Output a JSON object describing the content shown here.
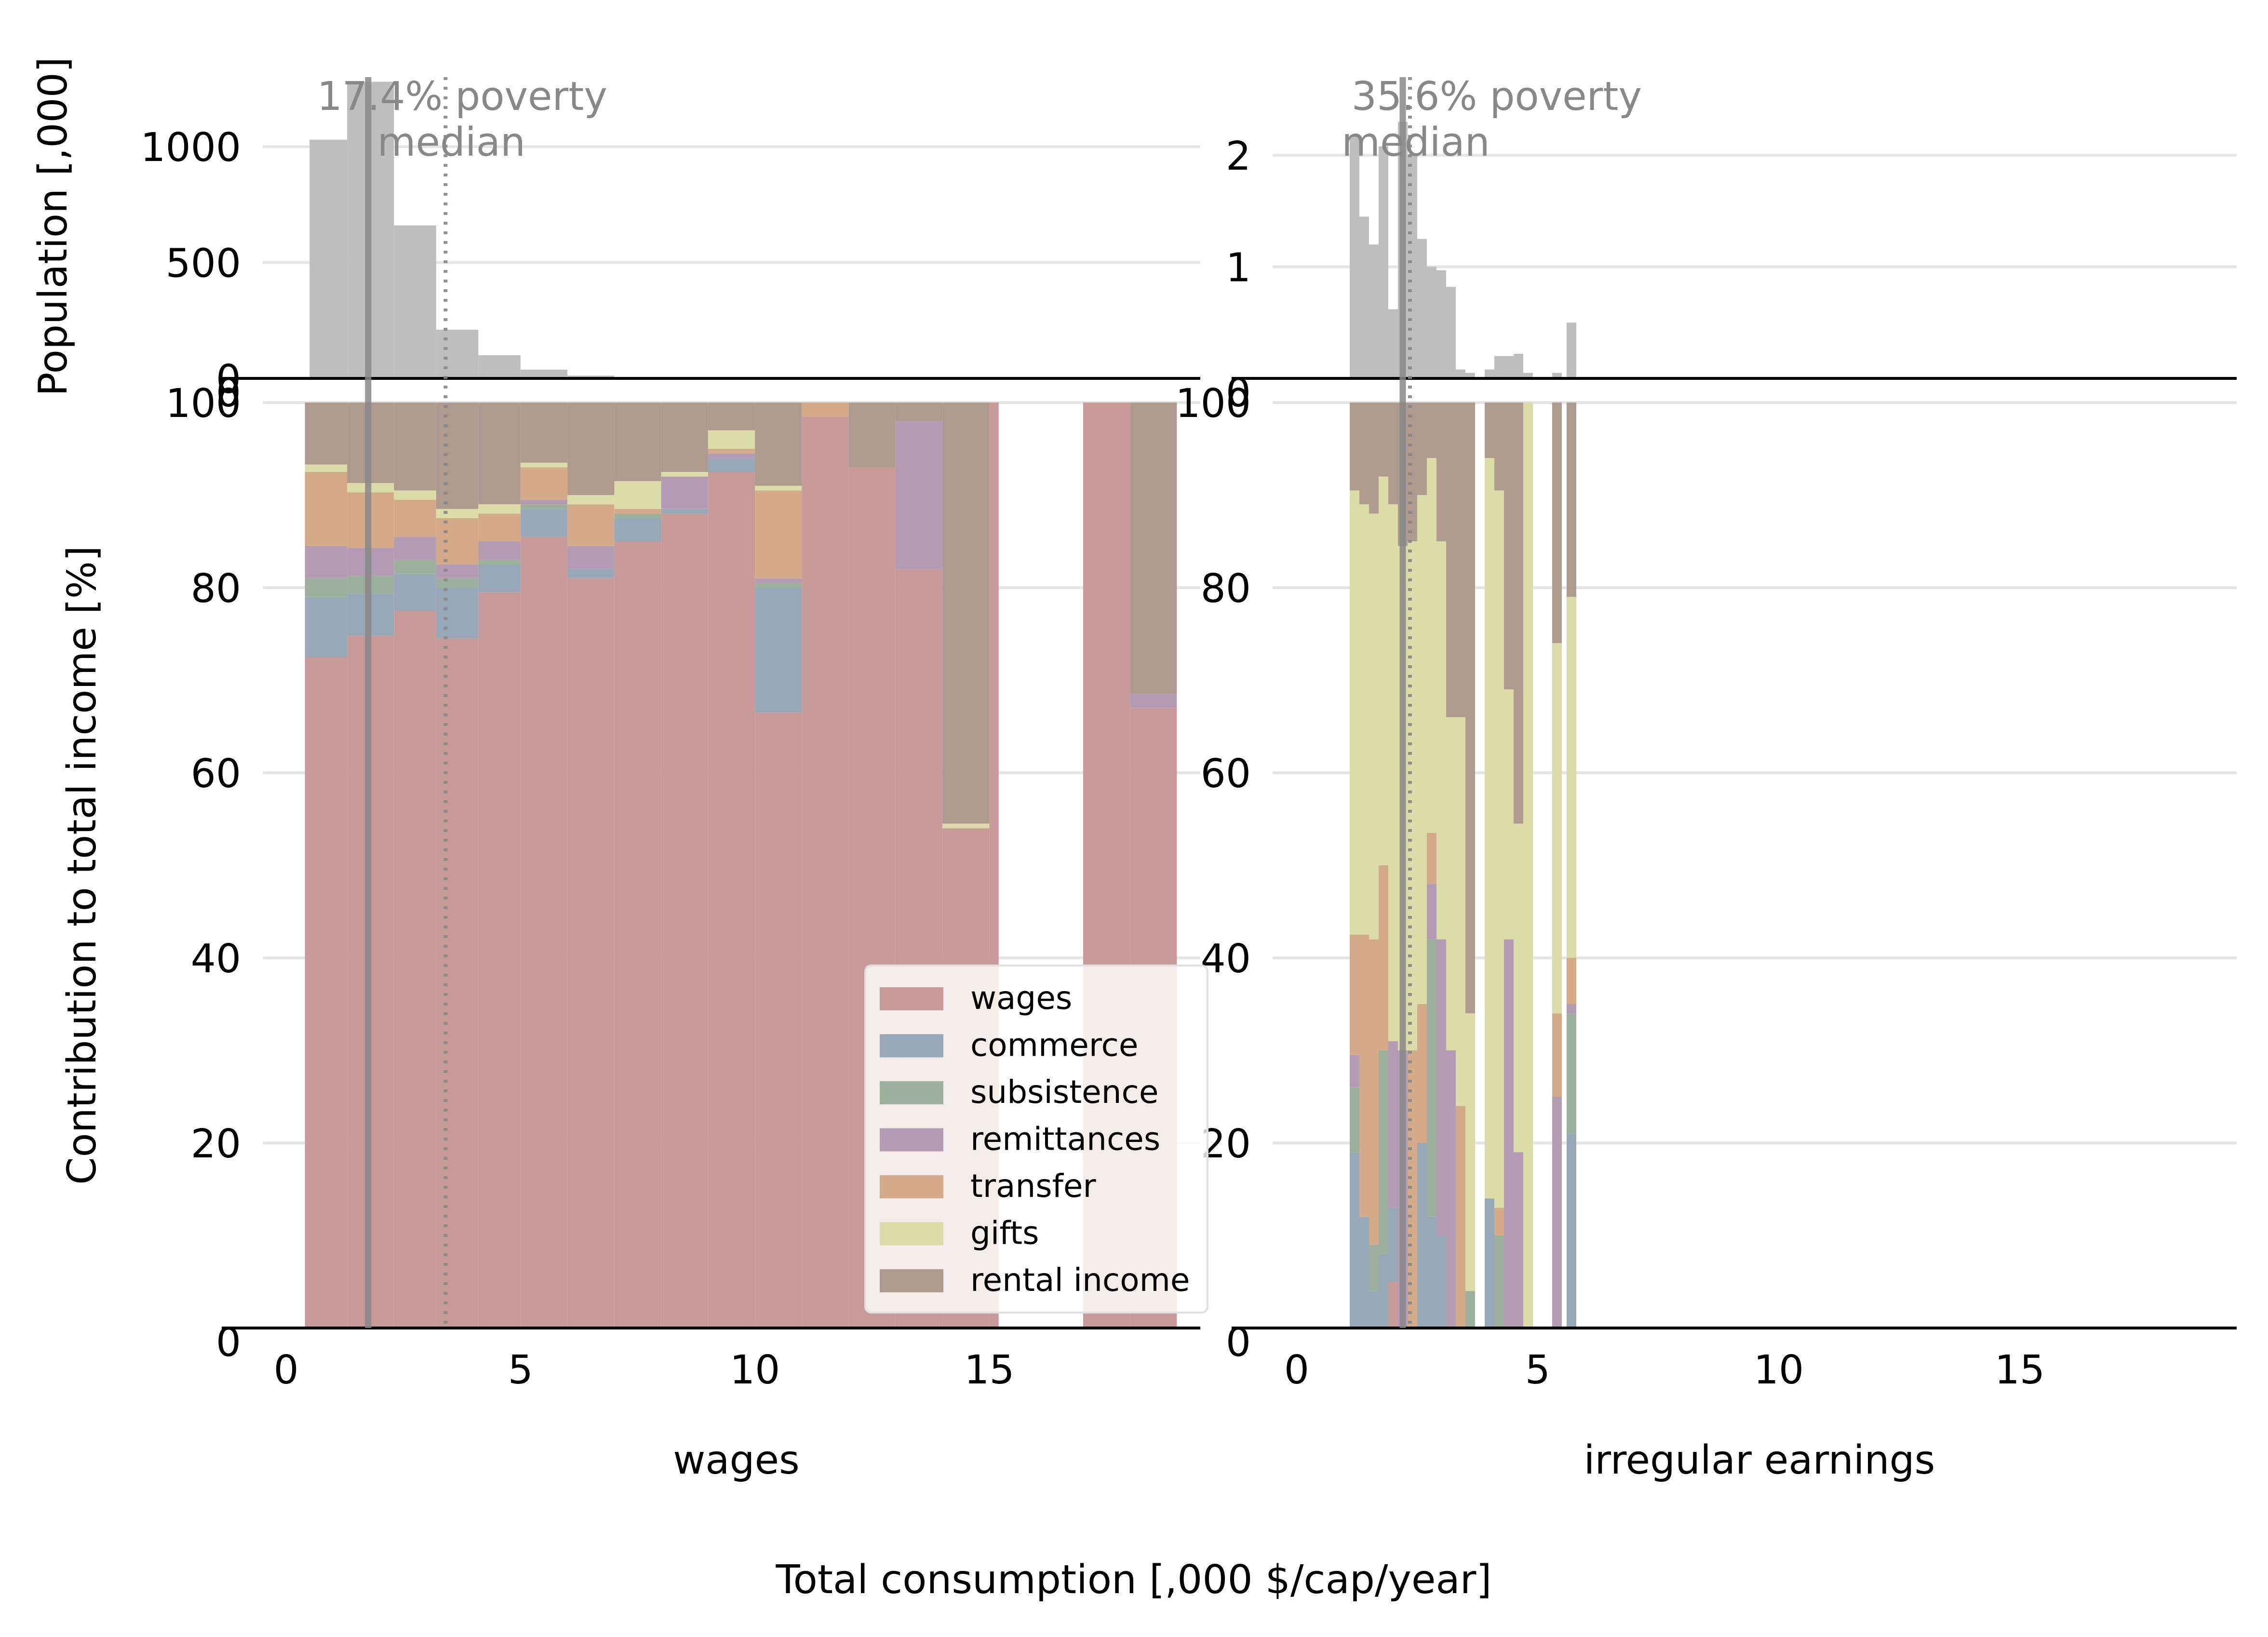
{
  "figure": {
    "ylabel_top": "Population [,000]",
    "ylabel_bottom": "Contribution to total income [%]",
    "xlabel": "Total consumption [,000 $/cap/year]"
  },
  "colors": {
    "wages": "#c99a9a",
    "commerce": "#98a8b8",
    "subsistence": "#9cb09c",
    "remittances": "#b49cb4",
    "transfer": "#d4aa8a",
    "gifts": "#dcdca8",
    "rental income": "#ae9a8e",
    "hist": "#bebebe",
    "annotation": "#888888",
    "grid": "#e6e6e6"
  },
  "chart_data": [
    {
      "type": "bar",
      "panel": "hist",
      "column": "wages",
      "annotation": [
        "17.4% poverty",
        "median"
      ],
      "poverty_line_x": 1.75,
      "median_x": 3.4,
      "xlim": [
        -0.5,
        19.5
      ],
      "ylim": [
        0,
        1300
      ],
      "yticks": [
        0,
        500,
        1000
      ],
      "bins": [
        {
          "x0": 0.5,
          "x1": 1.3,
          "y": 1030
        },
        {
          "x0": 1.3,
          "x1": 2.3,
          "y": 1280
        },
        {
          "x0": 2.3,
          "x1": 3.2,
          "y": 660
        },
        {
          "x0": 3.2,
          "x1": 4.1,
          "y": 210
        },
        {
          "x0": 4.1,
          "x1": 5.0,
          "y": 100
        },
        {
          "x0": 5.0,
          "x1": 6.0,
          "y": 38
        },
        {
          "x0": 6.0,
          "x1": 7.0,
          "y": 12
        },
        {
          "x0": 7.0,
          "x1": 8.0,
          "y": 4
        }
      ]
    },
    {
      "type": "bar",
      "panel": "hist",
      "column": "irregular earnings",
      "annotation": [
        "35.6% poverty",
        "median"
      ],
      "poverty_line_x": 2.2,
      "median_x": 2.35,
      "xlim": [
        -0.5,
        19.5
      ],
      "ylim": [
        0,
        2.7
      ],
      "yticks": [
        1,
        2
      ],
      "bins": [
        {
          "x0": 1.1,
          "x1": 1.3,
          "y": 2.18
        },
        {
          "x0": 1.3,
          "x1": 1.5,
          "y": 1.45
        },
        {
          "x0": 1.5,
          "x1": 1.7,
          "y": 1.2
        },
        {
          "x0": 1.7,
          "x1": 1.9,
          "y": 2.08
        },
        {
          "x0": 1.9,
          "x1": 2.1,
          "y": 0.62
        },
        {
          "x0": 2.1,
          "x1": 2.3,
          "y": 2.3
        },
        {
          "x0": 2.3,
          "x1": 2.5,
          "y": 2.0
        },
        {
          "x0": 2.5,
          "x1": 2.7,
          "y": 1.25
        },
        {
          "x0": 2.7,
          "x1": 2.9,
          "y": 1.0
        },
        {
          "x0": 2.9,
          "x1": 3.1,
          "y": 0.97
        },
        {
          "x0": 3.1,
          "x1": 3.3,
          "y": 0.82
        },
        {
          "x0": 3.3,
          "x1": 3.5,
          "y": 0.08
        },
        {
          "x0": 3.5,
          "x1": 3.7,
          "y": 0.05
        },
        {
          "x0": 3.9,
          "x1": 4.1,
          "y": 0.08
        },
        {
          "x0": 4.1,
          "x1": 4.3,
          "y": 0.2
        },
        {
          "x0": 4.3,
          "x1": 4.5,
          "y": 0.2
        },
        {
          "x0": 4.5,
          "x1": 4.7,
          "y": 0.22
        },
        {
          "x0": 4.7,
          "x1": 4.9,
          "y": 0.05
        },
        {
          "x0": 5.3,
          "x1": 5.5,
          "y": 0.05
        },
        {
          "x0": 5.6,
          "x1": 5.8,
          "y": 0.5
        }
      ]
    },
    {
      "type": "bar",
      "panel": "stacked",
      "column": "wages",
      "xlabel": "wages",
      "ylabel": "Contribution to total income [%]",
      "xlim": [
        -0.5,
        19.5
      ],
      "ylim": [
        0,
        100
      ],
      "xticks": [
        0,
        5,
        10,
        15
      ],
      "yticks": [
        0,
        20,
        40,
        60,
        80,
        100
      ],
      "stack_order": [
        "wages",
        "commerce",
        "subsistence",
        "remittances",
        "transfer",
        "gifts",
        "rental income"
      ],
      "bins": [
        {
          "x0": 0.4,
          "x1": 1.3,
          "v": [
            72.5,
            6.5,
            2.0,
            3.5,
            8.0,
            0.8,
            6.7
          ]
        },
        {
          "x0": 1.3,
          "x1": 2.3,
          "v": [
            74.8,
            4.5,
            2.0,
            3.0,
            6.0,
            1.0,
            8.7
          ]
        },
        {
          "x0": 2.3,
          "x1": 3.2,
          "v": [
            77.5,
            4.0,
            1.5,
            2.5,
            4.0,
            1.0,
            9.5
          ]
        },
        {
          "x0": 3.2,
          "x1": 4.1,
          "v": [
            74.5,
            5.5,
            1.0,
            1.5,
            5.0,
            1.0,
            11.5
          ]
        },
        {
          "x0": 4.1,
          "x1": 5.0,
          "v": [
            79.5,
            3.0,
            0.5,
            2.0,
            3.0,
            1.0,
            11.0
          ]
        },
        {
          "x0": 5.0,
          "x1": 6.0,
          "v": [
            85.5,
            3.0,
            0.5,
            0.5,
            3.5,
            0.5,
            6.5
          ]
        },
        {
          "x0": 6.0,
          "x1": 7.0,
          "v": [
            81.0,
            1.0,
            0.0,
            2.5,
            4.5,
            1.0,
            10.0
          ]
        },
        {
          "x0": 7.0,
          "x1": 8.0,
          "v": [
            85.0,
            2.5,
            0.5,
            0.0,
            0.5,
            3.0,
            8.5
          ]
        },
        {
          "x0": 8.0,
          "x1": 9.0,
          "v": [
            88.0,
            0.5,
            0.0,
            3.5,
            0.0,
            0.5,
            7.5
          ]
        },
        {
          "x0": 9.0,
          "x1": 10.0,
          "v": [
            92.5,
            1.5,
            0.0,
            0.5,
            0.5,
            2.0,
            3.0
          ]
        },
        {
          "x0": 10.0,
          "x1": 11.0,
          "v": [
            66.5,
            13.5,
            0.5,
            0.5,
            9.5,
            0.5,
            9.0
          ]
        },
        {
          "x0": 11.0,
          "x1": 12.0,
          "v": [
            98.5,
            0.0,
            0.0,
            0.0,
            1.5,
            0.0,
            0.0
          ]
        },
        {
          "x0": 12.0,
          "x1": 13.0,
          "v": [
            93.0,
            0.0,
            0.0,
            0.0,
            0.0,
            0.0,
            7.0
          ]
        },
        {
          "x0": 13.0,
          "x1": 14.0,
          "v": [
            82.0,
            0.0,
            0.0,
            16.0,
            0.0,
            0.0,
            2.0
          ]
        },
        {
          "x0": 14.0,
          "x1": 15.0,
          "v": [
            54.0,
            0.0,
            0.0,
            0.0,
            0.0,
            0.5,
            45.5
          ]
        },
        {
          "x0": 15.0,
          "x1": 15.2,
          "v": [
            100.0,
            0.0,
            0.0,
            0.0,
            0.0,
            0.0,
            0.0
          ]
        },
        {
          "x0": 17.0,
          "x1": 18.0,
          "v": [
            100.0,
            0.0,
            0.0,
            0.0,
            0.0,
            0.0,
            0.0
          ]
        },
        {
          "x0": 18.0,
          "x1": 19.0,
          "v": [
            67.0,
            0.0,
            0.0,
            1.5,
            0.0,
            0.0,
            31.5
          ]
        }
      ],
      "legend": {
        "placement": "lower-right",
        "entries": [
          "wages",
          "commerce",
          "subsistence",
          "remittances",
          "transfer",
          "gifts",
          "rental income"
        ]
      }
    },
    {
      "type": "bar",
      "panel": "stacked",
      "column": "irregular earnings",
      "xlabel": "irregular earnings",
      "xlim": [
        -0.5,
        19.5
      ],
      "ylim": [
        0,
        100
      ],
      "xticks": [
        0,
        5,
        10,
        15
      ],
      "yticks": [
        0,
        20,
        40,
        60,
        80,
        100
      ],
      "stack_order": [
        "wages",
        "commerce",
        "subsistence",
        "remittances",
        "transfer",
        "gifts",
        "rental income"
      ],
      "bins": [
        {
          "x0": 1.1,
          "x1": 1.3,
          "v": [
            0.0,
            19.0,
            7.0,
            3.5,
            13.0,
            48.0,
            9.5
          ]
        },
        {
          "x0": 1.3,
          "x1": 1.5,
          "v": [
            0.0,
            12.0,
            0.0,
            0.0,
            30.5,
            46.5,
            11.0
          ]
        },
        {
          "x0": 1.5,
          "x1": 1.7,
          "v": [
            0.0,
            4.0,
            5.0,
            0.0,
            33.0,
            46.0,
            12.0
          ]
        },
        {
          "x0": 1.7,
          "x1": 1.9,
          "v": [
            0.0,
            8.0,
            22.0,
            0.0,
            20.0,
            42.0,
            8.0
          ]
        },
        {
          "x0": 1.9,
          "x1": 2.1,
          "v": [
            5.0,
            8.0,
            0.0,
            18.0,
            0.0,
            58.0,
            11.0
          ]
        },
        {
          "x0": 2.1,
          "x1": 2.3,
          "v": [
            0.0,
            0.0,
            0.0,
            30.0,
            0.0,
            54.5,
            15.5
          ]
        },
        {
          "x0": 2.3,
          "x1": 2.5,
          "v": [
            0.0,
            0.0,
            0.0,
            0.0,
            30.0,
            55.0,
            15.0
          ]
        },
        {
          "x0": 2.5,
          "x1": 2.7,
          "v": [
            0.0,
            20.0,
            0.0,
            0.0,
            15.0,
            55.0,
            10.0
          ]
        },
        {
          "x0": 2.7,
          "x1": 2.9,
          "v": [
            0.0,
            12.0,
            30.0,
            6.0,
            5.5,
            40.5,
            6.0
          ]
        },
        {
          "x0": 2.9,
          "x1": 3.1,
          "v": [
            0.0,
            10.0,
            0.0,
            32.0,
            0.0,
            43.0,
            15.0
          ]
        },
        {
          "x0": 3.1,
          "x1": 3.3,
          "v": [
            0.0,
            0.0,
            0.0,
            30.0,
            0.0,
            36.0,
            34.0
          ]
        },
        {
          "x0": 3.3,
          "x1": 3.5,
          "v": [
            0.0,
            0.0,
            0.0,
            0.0,
            24.0,
            42.0,
            34.0
          ]
        },
        {
          "x0": 3.5,
          "x1": 3.7,
          "v": [
            0.0,
            0.0,
            4.0,
            0.0,
            0.0,
            30.0,
            66.0
          ]
        },
        {
          "x0": 3.9,
          "x1": 4.1,
          "v": [
            0.0,
            14.0,
            0.0,
            0.0,
            0.0,
            80.0,
            6.0
          ]
        },
        {
          "x0": 4.1,
          "x1": 4.3,
          "v": [
            0.0,
            0.0,
            10.0,
            0.0,
            3.0,
            77.5,
            9.5
          ]
        },
        {
          "x0": 4.3,
          "x1": 4.5,
          "v": [
            0.0,
            0.0,
            0.0,
            42.0,
            0.0,
            27.0,
            31.0
          ]
        },
        {
          "x0": 4.5,
          "x1": 4.7,
          "v": [
            0.0,
            0.0,
            0.0,
            19.0,
            0.0,
            35.5,
            45.5
          ]
        },
        {
          "x0": 4.7,
          "x1": 4.9,
          "v": [
            0.0,
            0.0,
            0.0,
            0.0,
            0.0,
            100.0,
            0.0
          ]
        },
        {
          "x0": 5.3,
          "x1": 5.5,
          "v": [
            0.0,
            0.0,
            0.0,
            25.0,
            9.0,
            40.0,
            26.0
          ]
        },
        {
          "x0": 5.6,
          "x1": 5.8,
          "v": [
            0.0,
            21.0,
            13.0,
            1.0,
            5.0,
            39.0,
            21.0
          ]
        }
      ]
    }
  ]
}
